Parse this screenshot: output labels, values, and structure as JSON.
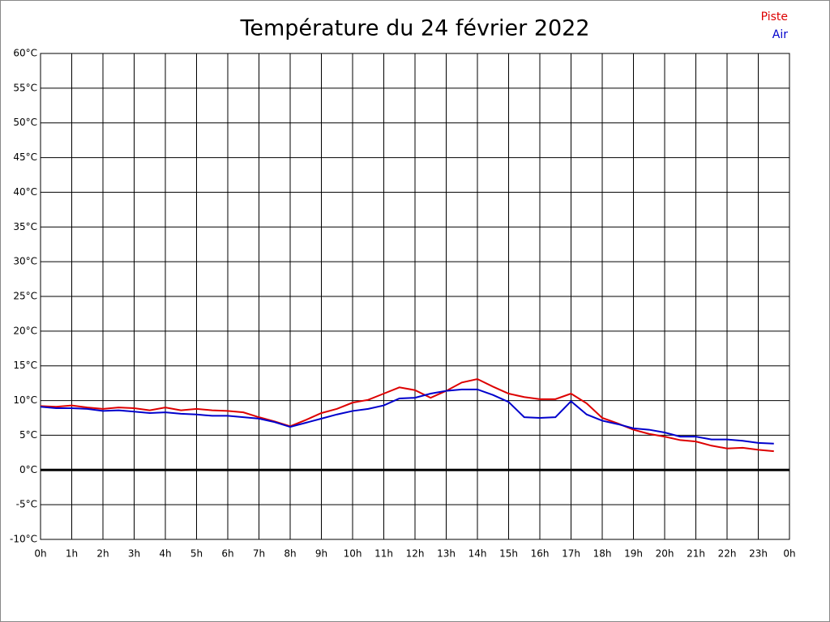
{
  "chart_data": {
    "type": "line",
    "title": "Température du 24 février 2022",
    "x": [
      0,
      0.5,
      1,
      1.5,
      2,
      2.5,
      3,
      3.5,
      4,
      4.5,
      5,
      5.5,
      6,
      6.5,
      7,
      7.5,
      8,
      8.5,
      9,
      9.5,
      10,
      10.5,
      11,
      11.5,
      12,
      12.5,
      13,
      13.5,
      14,
      14.5,
      15,
      15.5,
      16,
      16.5,
      17,
      17.5,
      18,
      18.5,
      19,
      19.5,
      20,
      20.5,
      21,
      21.5,
      22,
      22.5,
      23,
      23.5
    ],
    "series": [
      {
        "name": "Piste",
        "color": "#dd0000",
        "values": [
          9.2,
          9.1,
          9.3,
          9.0,
          8.8,
          9.0,
          8.9,
          8.6,
          9.0,
          8.6,
          8.8,
          8.6,
          8.5,
          8.3,
          7.6,
          7.0,
          6.3,
          7.2,
          8.2,
          8.8,
          9.7,
          10.1,
          11.0,
          11.9,
          11.5,
          10.4,
          11.4,
          12.6,
          13.1,
          12.0,
          11.0,
          10.5,
          10.2,
          10.2,
          11.0,
          9.6,
          7.5,
          6.7,
          5.8,
          5.2,
          4.8,
          4.3,
          4.1,
          3.5,
          3.1,
          3.2,
          2.9,
          2.7
        ]
      },
      {
        "name": "Air",
        "color": "#0000cc",
        "values": [
          9.1,
          8.9,
          8.9,
          8.8,
          8.5,
          8.6,
          8.4,
          8.2,
          8.3,
          8.1,
          8.0,
          7.8,
          7.8,
          7.6,
          7.4,
          6.9,
          6.2,
          6.8,
          7.4,
          8.0,
          8.5,
          8.8,
          9.3,
          10.3,
          10.4,
          11.0,
          11.4,
          11.6,
          11.6,
          10.8,
          9.8,
          7.6,
          7.5,
          7.6,
          9.9,
          8.0,
          7.1,
          6.6,
          6.0,
          5.8,
          5.4,
          4.8,
          4.8,
          4.4,
          4.4,
          4.2,
          3.9,
          3.8
        ]
      }
    ],
    "xlim": [
      0,
      24
    ],
    "xticks": [
      {
        "value": 0,
        "label": "0h"
      },
      {
        "value": 1,
        "label": "1h"
      },
      {
        "value": 2,
        "label": "2h"
      },
      {
        "value": 3,
        "label": "3h"
      },
      {
        "value": 4,
        "label": "4h"
      },
      {
        "value": 5,
        "label": "5h"
      },
      {
        "value": 6,
        "label": "6h"
      },
      {
        "value": 7,
        "label": "7h"
      },
      {
        "value": 8,
        "label": "8h"
      },
      {
        "value": 9,
        "label": "9h"
      },
      {
        "value": 10,
        "label": "10h"
      },
      {
        "value": 11,
        "label": "11h"
      },
      {
        "value": 12,
        "label": "12h"
      },
      {
        "value": 13,
        "label": "13h"
      },
      {
        "value": 14,
        "label": "14h"
      },
      {
        "value": 15,
        "label": "15h"
      },
      {
        "value": 16,
        "label": "16h"
      },
      {
        "value": 17,
        "label": "17h"
      },
      {
        "value": 18,
        "label": "18h"
      },
      {
        "value": 19,
        "label": "19h"
      },
      {
        "value": 20,
        "label": "20h"
      },
      {
        "value": 21,
        "label": "21h"
      },
      {
        "value": 22,
        "label": "22h"
      },
      {
        "value": 23,
        "label": "23h"
      },
      {
        "value": 24,
        "label": "0h"
      }
    ],
    "ylim": [
      -10,
      60
    ],
    "yticks": [
      {
        "value": -10,
        "label": "-10°C"
      },
      {
        "value": -5,
        "label": "-5°C"
      },
      {
        "value": 0,
        "label": "0°C"
      },
      {
        "value": 5,
        "label": "5°C"
      },
      {
        "value": 10,
        "label": "10°C"
      },
      {
        "value": 15,
        "label": "15°C"
      },
      {
        "value": 20,
        "label": "20°C"
      },
      {
        "value": 25,
        "label": "25°C"
      },
      {
        "value": 30,
        "label": "30°C"
      },
      {
        "value": 35,
        "label": "35°C"
      },
      {
        "value": 40,
        "label": "40°C"
      },
      {
        "value": 45,
        "label": "45°C"
      },
      {
        "value": 50,
        "label": "50°C"
      },
      {
        "value": 55,
        "label": "55°C"
      },
      {
        "value": 60,
        "label": "60°C"
      }
    ],
    "grid": true,
    "legend": "top-right"
  }
}
